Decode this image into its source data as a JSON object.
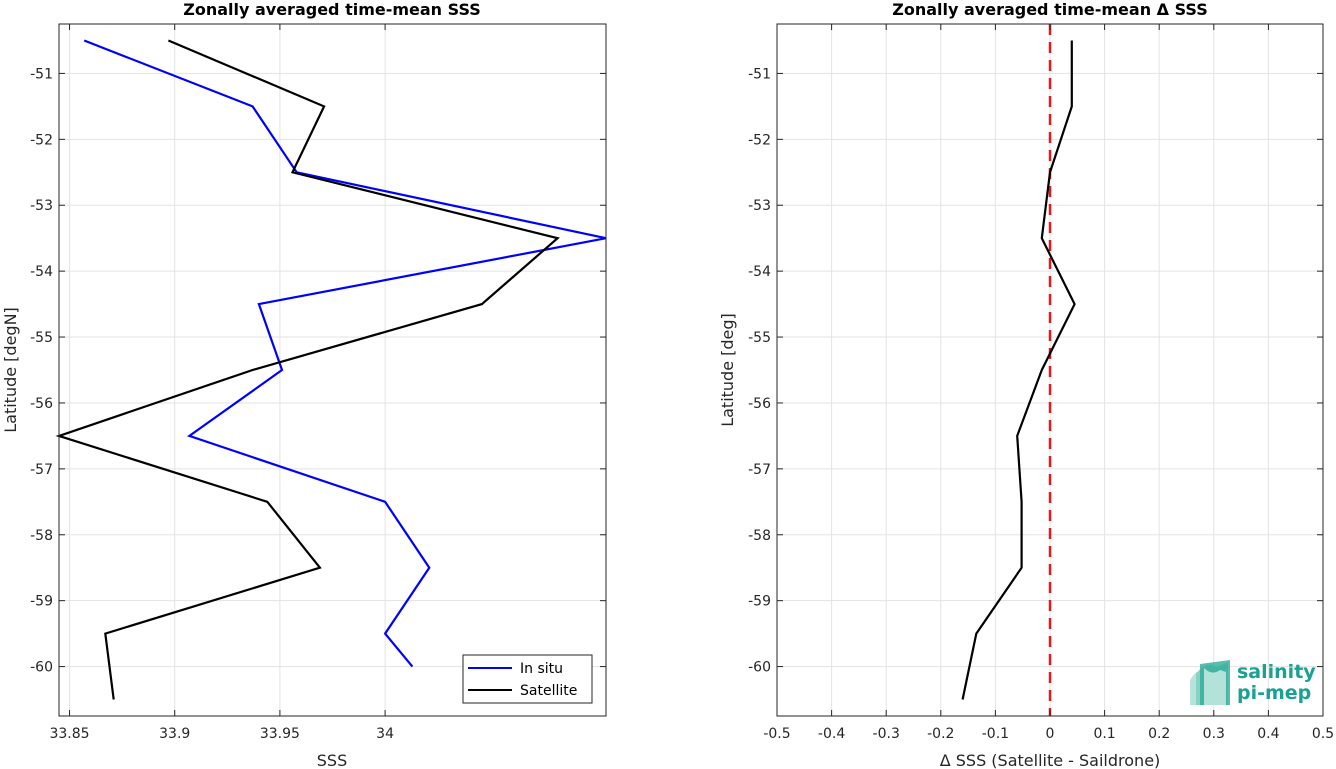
{
  "logo": {
    "line1": "salinity",
    "line2": "pi-mep"
  },
  "chart_data": [
    {
      "type": "line",
      "title": "Zonally averaged time-mean SSS",
      "xlabel": "SSS",
      "ylabel": "Latitude [degN]",
      "xlim": [
        33.845,
        34.105
      ],
      "ylim": [
        -60.75,
        -50.25
      ],
      "xticks": [
        33.85,
        33.9,
        33.95,
        34
      ],
      "xtick_labels": [
        "33.85",
        "33.9",
        "33.95",
        "34"
      ],
      "yticks": [
        -51,
        -52,
        -53,
        -54,
        -55,
        -56,
        -57,
        -58,
        -59,
        -60
      ],
      "grid": true,
      "legend_position": "bottom-right",
      "series": [
        {
          "name": "In situ",
          "color": "#0000ff",
          "points": [
            [
              33.857,
              -50.5
            ],
            [
              33.937,
              -51.5
            ],
            [
              33.958,
              -52.5
            ],
            [
              34.105,
              -53.5
            ],
            [
              33.94,
              -54.5
            ],
            [
              33.951,
              -55.5
            ],
            [
              33.907,
              -56.5
            ],
            [
              34.0,
              -57.5
            ],
            [
              34.021,
              -58.5
            ],
            [
              34.0,
              -59.5
            ],
            [
              34.013,
              -60.0
            ]
          ]
        },
        {
          "name": "Satellite",
          "color": "#000000",
          "points": [
            [
              33.897,
              -50.5
            ],
            [
              33.971,
              -51.5
            ],
            [
              33.956,
              -52.5
            ],
            [
              34.082,
              -53.5
            ],
            [
              34.046,
              -54.5
            ],
            [
              33.937,
              -55.5
            ],
            [
              33.845,
              -56.5
            ],
            [
              33.944,
              -57.5
            ],
            [
              33.969,
              -58.5
            ],
            [
              33.867,
              -59.5
            ],
            [
              33.871,
              -60.5
            ]
          ]
        }
      ]
    },
    {
      "type": "line",
      "title": "Zonally averaged time-mean Δ SSS",
      "xlabel": "Δ SSS (Satellite - Saildrone)",
      "ylabel": "Latitude [deg]",
      "xlim": [
        -0.5,
        0.5
      ],
      "ylim": [
        -60.75,
        -50.25
      ],
      "xticks": [
        -0.5,
        -0.4,
        -0.3,
        -0.2,
        -0.1,
        0,
        0.1,
        0.2,
        0.3,
        0.4,
        0.5
      ],
      "xtick_labels": [
        "-0.5",
        "-0.4",
        "-0.3",
        "-0.2",
        "-0.1",
        "0",
        "0.1",
        "0.2",
        "0.3",
        "0.4",
        "0.5"
      ],
      "yticks": [
        -51,
        -52,
        -53,
        -54,
        -55,
        -56,
        -57,
        -58,
        -59,
        -60
      ],
      "grid": true,
      "reference_line": {
        "x": 0,
        "color": "#e31a1c",
        "style": "dashed"
      },
      "series": [
        {
          "color": "#000000",
          "points": [
            [
              0.04,
              -50.5
            ],
            [
              0.04,
              -51.5
            ],
            [
              0.0,
              -52.5
            ],
            [
              -0.015,
              -53.5
            ],
            [
              0.045,
              -54.5
            ],
            [
              -0.015,
              -55.5
            ],
            [
              -0.06,
              -56.5
            ],
            [
              -0.052,
              -57.5
            ],
            [
              -0.052,
              -58.5
            ],
            [
              -0.135,
              -59.5
            ],
            [
              -0.16,
              -60.5
            ]
          ]
        }
      ]
    }
  ]
}
